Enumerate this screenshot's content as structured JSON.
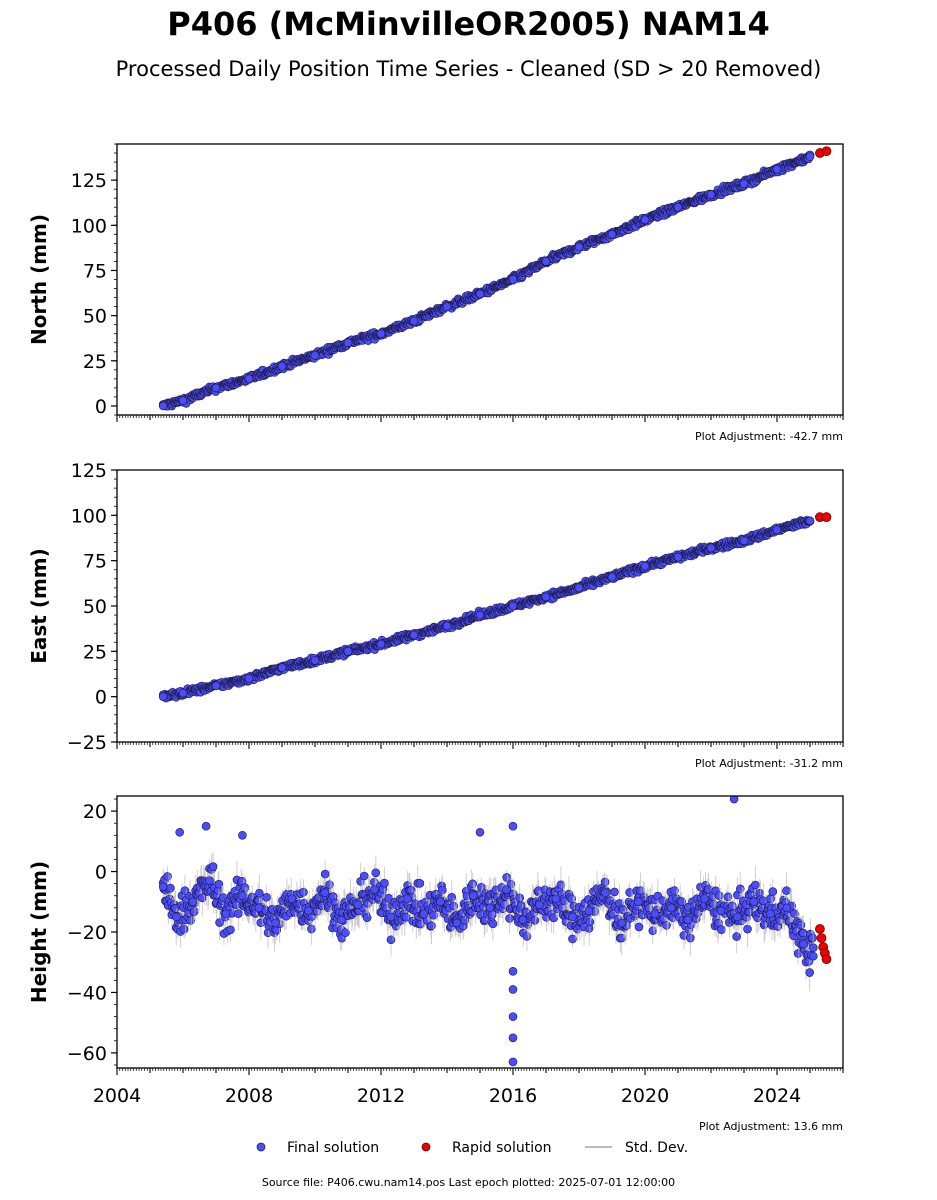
{
  "title": "P406 (McMinvilleOR2005) NAM14",
  "subtitle": "Processed Daily Position Time Series - Cleaned (SD > 20 Removed)",
  "source_note": "Source file: P406.cwu.nam14.pos  Last epoch plotted: 2025-07-01 12:00:00",
  "colors": {
    "final": "#4c4cff",
    "rapid": "#ee0000",
    "edge": "#1a1a40",
    "stddev": "#bbbbbb"
  },
  "legend": {
    "final": "Final solution",
    "rapid": "Rapid solution",
    "stddev": "Std. Dev."
  },
  "chart_data": [
    {
      "type": "scatter",
      "ylabel": "North (mm)",
      "adjustment": "Plot Adjustment: -42.7 mm",
      "xlim": [
        2004,
        2026
      ],
      "ylim": [
        -5,
        145
      ],
      "yticks": [
        0,
        25,
        50,
        75,
        100,
        125
      ],
      "xticks": [
        2004,
        2008,
        2012,
        2016,
        2020,
        2024
      ],
      "series": [
        {
          "name": "Final solution",
          "x": [
            2005.4,
            2006.0,
            2007.0,
            2008.0,
            2009.0,
            2010.0,
            2011.0,
            2012.0,
            2013.0,
            2014.0,
            2015.0,
            2016.0,
            2017.0,
            2018.0,
            2019.0,
            2020.0,
            2021.0,
            2022.0,
            2023.0,
            2024.0,
            2025.0
          ],
          "y": [
            0,
            3,
            10,
            15,
            22,
            28,
            35,
            40,
            47,
            55,
            62,
            70,
            80,
            88,
            95,
            103,
            110,
            117,
            123,
            131,
            138
          ]
        },
        {
          "name": "Rapid solution",
          "x": [
            2025.3,
            2025.5
          ],
          "y": [
            140,
            141
          ]
        }
      ]
    },
    {
      "type": "scatter",
      "ylabel": "East (mm)",
      "adjustment": "Plot Adjustment: -31.2 mm",
      "xlim": [
        2004,
        2026
      ],
      "ylim": [
        -25,
        125
      ],
      "yticks": [
        -25,
        0,
        25,
        50,
        75,
        100,
        125
      ],
      "xticks": [
        2004,
        2008,
        2012,
        2016,
        2020,
        2024
      ],
      "series": [
        {
          "name": "Final solution",
          "x": [
            2005.4,
            2006.0,
            2007.0,
            2008.0,
            2009.0,
            2010.0,
            2011.0,
            2012.0,
            2013.0,
            2014.0,
            2015.0,
            2016.0,
            2017.0,
            2018.0,
            2019.0,
            2020.0,
            2021.0,
            2022.0,
            2023.0,
            2024.0,
            2025.0
          ],
          "y": [
            0,
            2,
            6,
            10,
            16,
            20,
            25,
            29,
            34,
            39,
            45,
            50,
            55,
            60,
            66,
            72,
            77,
            82,
            86,
            92,
            97
          ]
        },
        {
          "name": "Rapid solution",
          "x": [
            2025.3,
            2025.5
          ],
          "y": [
            99,
            99
          ]
        }
      ]
    },
    {
      "type": "scatter",
      "ylabel": "Height (mm)",
      "adjustment": "Plot Adjustment: 13.6 mm",
      "xlim": [
        2004,
        2026
      ],
      "ylim": [
        -65,
        25
      ],
      "yticks": [
        -60,
        -40,
        -20,
        0,
        20
      ],
      "xticks": [
        2004,
        2008,
        2012,
        2016,
        2020,
        2024
      ],
      "series": [
        {
          "name": "Final solution",
          "x": [
            2005.4,
            2005.8,
            2006.3,
            2006.8,
            2007.3,
            2007.8,
            2008.3,
            2008.8,
            2009.3,
            2009.8,
            2010.3,
            2010.8,
            2011.3,
            2011.8,
            2012.3,
            2012.8,
            2013.3,
            2013.8,
            2014.3,
            2014.8,
            2015.3,
            2015.8,
            2016.3,
            2016.8,
            2017.3,
            2017.8,
            2018.3,
            2018.8,
            2019.3,
            2019.8,
            2020.3,
            2020.8,
            2021.3,
            2021.8,
            2022.3,
            2022.8,
            2023.3,
            2023.8,
            2024.3,
            2024.8,
            2025.1
          ],
          "y": [
            -5,
            -15,
            -10,
            -3,
            -14,
            -8,
            -12,
            -17,
            -9,
            -13,
            -7,
            -16,
            -11,
            -6,
            -15,
            -9,
            -14,
            -10,
            -17,
            -8,
            -12,
            -6,
            -16,
            -11,
            -9,
            -15,
            -13,
            -7,
            -17,
            -10,
            -14,
            -12,
            -16,
            -9,
            -13,
            -15,
            -10,
            -14,
            -12,
            -24,
            -28
          ]
        },
        {
          "name": "Rapid solution",
          "x": [
            2025.3,
            2025.35,
            2025.4,
            2025.45,
            2025.5
          ],
          "y": [
            -19,
            -22,
            -25,
            -27,
            -29
          ]
        }
      ],
      "outliers": {
        "x": [
          2016.0,
          2016.0,
          2016.0,
          2016.0,
          2016.0,
          2016.0,
          2022.7,
          2005.9,
          2006.7,
          2007.8,
          2015.0
        ],
        "y": [
          -63,
          -55,
          -48,
          -39,
          -33,
          15,
          24,
          13,
          15,
          12,
          13
        ]
      }
    }
  ]
}
